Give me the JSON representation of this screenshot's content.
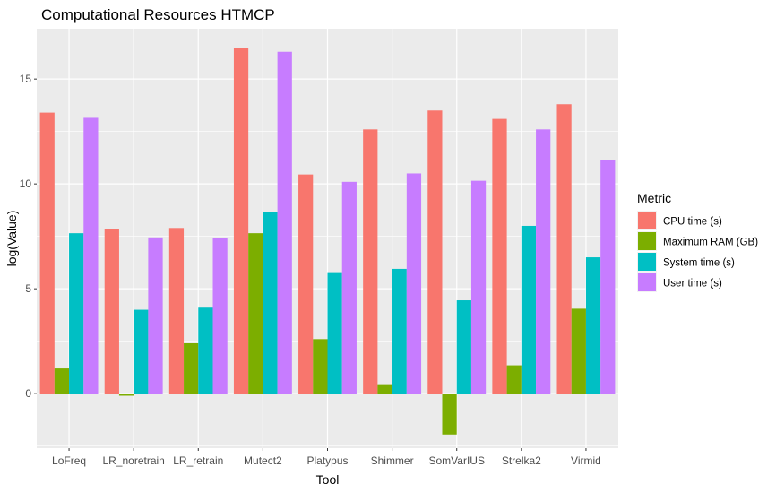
{
  "chart_data": {
    "type": "bar",
    "title": "Computational Resources HTMCP",
    "xlabel": "Tool",
    "ylabel": "log(Value)",
    "categories": [
      "LoFreq",
      "LR_noretrain",
      "LR_retrain",
      "Mutect2",
      "Platypus",
      "Shimmer",
      "SomVarIUS",
      "Strelka2",
      "Virmid"
    ],
    "series": [
      {
        "name": "CPU time (s)",
        "color": "#F8766D",
        "values": [
          13.4,
          7.85,
          7.9,
          16.5,
          10.45,
          12.6,
          13.5,
          13.1,
          13.8
        ]
      },
      {
        "name": "Maximum RAM (GB)",
        "color": "#7CAE00",
        "values": [
          1.2,
          -0.1,
          2.4,
          7.65,
          2.6,
          0.45,
          -1.95,
          1.35,
          4.05
        ]
      },
      {
        "name": "System time (s)",
        "color": "#00BFC4",
        "values": [
          7.65,
          4.0,
          4.1,
          8.65,
          5.75,
          5.95,
          4.45,
          8.0,
          6.5
        ]
      },
      {
        "name": "User time (s)",
        "color": "#C77CFF",
        "values": [
          13.15,
          7.45,
          7.4,
          16.3,
          10.1,
          10.5,
          10.15,
          12.6,
          11.15
        ]
      }
    ],
    "ylim": [
      -2.6,
      17.4
    ],
    "yticks": [
      0,
      5,
      10,
      15
    ],
    "legend": {
      "title": "Metric",
      "position": "right"
    },
    "grid": true,
    "panel_background": "#EBEBEB",
    "grid_color": "#FFFFFF"
  }
}
